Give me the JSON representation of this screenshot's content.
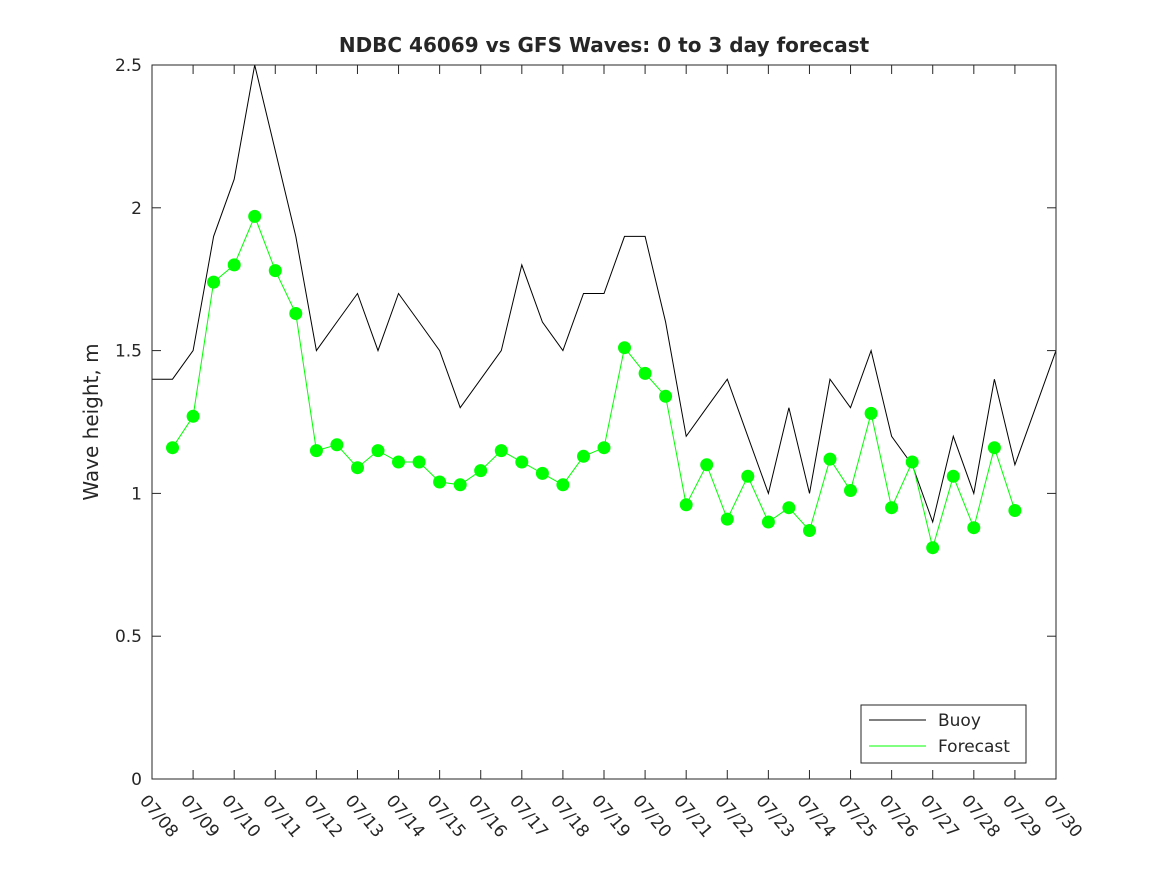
{
  "chart_data": {
    "type": "line",
    "title": "NDBC 46069 vs GFS Waves: 0 to 3 day forecast",
    "xlabel": "",
    "ylabel": "Wave height, m",
    "ylim": [
      0,
      2.5
    ],
    "yticks": [
      0,
      0.5,
      1,
      1.5,
      2,
      2.5
    ],
    "ytick_labels": [
      "0",
      "0.5",
      "1",
      "1.5",
      "2",
      "2.5"
    ],
    "xlim": [
      "07/08",
      "07/30"
    ],
    "xtick_labels": [
      "07/08",
      "07/09",
      "07/10",
      "07/11",
      "07/12",
      "07/13",
      "07/14",
      "07/15",
      "07/16",
      "07/17",
      "07/18",
      "07/19",
      "07/20",
      "07/21",
      "07/22",
      "07/23",
      "07/24",
      "07/25",
      "07/26",
      "07/27",
      "07/28",
      "07/29",
      "07/30"
    ],
    "grid": false,
    "legend_position": "bottom-right",
    "legend": [
      "Buoy",
      "Forecast"
    ],
    "colors": {
      "buoy": "#000000",
      "forecast": "#00ff00",
      "axis": "#262626"
    },
    "series": [
      {
        "name": "Buoy",
        "x": [
          "07/08",
          "07/08 12h",
          "07/09",
          "07/09 12h",
          "07/10",
          "07/10 12h",
          "07/11",
          "07/11 12h",
          "07/12",
          "07/12 12h",
          "07/13",
          "07/13 12h",
          "07/14",
          "07/14 12h",
          "07/15",
          "07/15 12h",
          "07/16",
          "07/16 12h",
          "07/17",
          "07/17 12h",
          "07/18",
          "07/18 12h",
          "07/19",
          "07/19 12h",
          "07/20",
          "07/20 12h",
          "07/21",
          "07/21 12h",
          "07/22",
          "07/22 12h",
          "07/23",
          "07/23 12h",
          "07/24",
          "07/24 12h",
          "07/25",
          "07/25 12h",
          "07/26",
          "07/26 12h",
          "07/27",
          "07/27 12h",
          "07/28",
          "07/28 12h",
          "07/29",
          "07/29 12h",
          "07/30"
        ],
        "values": [
          1.4,
          1.4,
          1.5,
          1.9,
          2.1,
          2.5,
          2.2,
          1.9,
          1.5,
          1.6,
          1.7,
          1.5,
          1.7,
          1.6,
          1.5,
          1.3,
          1.4,
          1.5,
          1.8,
          1.6,
          1.5,
          1.7,
          1.7,
          1.9,
          1.9,
          1.6,
          1.2,
          1.3,
          1.4,
          1.2,
          1.0,
          1.3,
          1.0,
          1.4,
          1.3,
          1.5,
          1.2,
          1.1,
          0.9,
          1.2,
          1.0,
          1.4,
          1.1,
          1.3,
          1.5
        ]
      },
      {
        "name": "Forecast",
        "x": [
          "07/08 12h",
          "07/09",
          "07/09 12h",
          "07/10",
          "07/10 12h",
          "07/11",
          "07/11 12h",
          "07/12",
          "07/12 12h",
          "07/13",
          "07/13 12h",
          "07/14",
          "07/14 12h",
          "07/15",
          "07/15 12h",
          "07/16",
          "07/16 12h",
          "07/17",
          "07/17 12h",
          "07/18",
          "07/18 12h",
          "07/19",
          "07/19 12h",
          "07/20",
          "07/20 12h",
          "07/21",
          "07/21 12h",
          "07/22",
          "07/22 12h",
          "07/23",
          "07/23 12h",
          "07/24",
          "07/24 12h",
          "07/25",
          "07/25 12h",
          "07/26",
          "07/26 12h",
          "07/27",
          "07/27 12h",
          "07/28",
          "07/28 12h",
          "07/29"
        ],
        "values": [
          1.16,
          1.27,
          1.74,
          1.8,
          1.97,
          1.78,
          1.63,
          1.15,
          1.17,
          1.09,
          1.15,
          1.11,
          1.11,
          1.04,
          1.03,
          1.08,
          1.15,
          1.11,
          1.07,
          1.03,
          1.13,
          1.16,
          1.51,
          1.42,
          1.34,
          0.96,
          1.1,
          0.91,
          1.06,
          0.9,
          0.95,
          0.87,
          1.12,
          1.01,
          1.28,
          0.95,
          1.11,
          0.81,
          1.06,
          0.88,
          1.16,
          0.94
        ]
      }
    ]
  }
}
